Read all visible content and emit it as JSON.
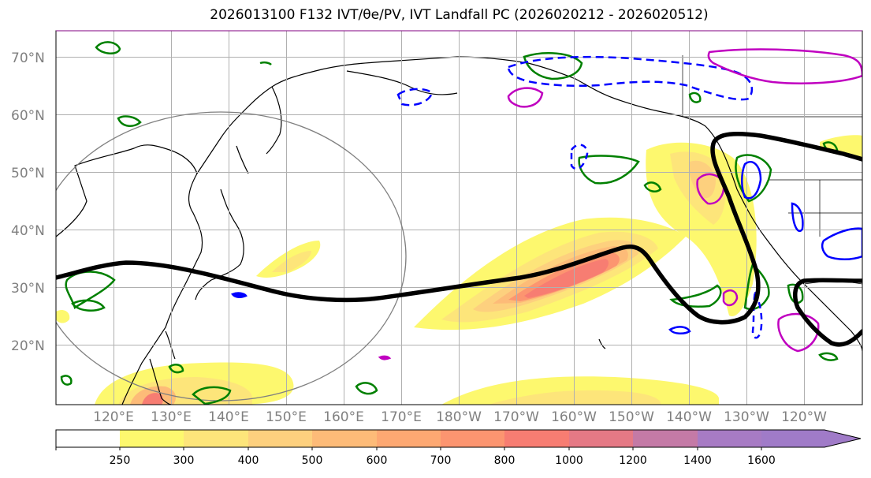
{
  "title": "2026013100 F132 IVT/θe/PV, IVT Landfall PC (2026020212 - 2026020512)",
  "map": {
    "lat_labels": [
      "70°N",
      "60°N",
      "50°N",
      "40°N",
      "30°N",
      "20°N"
    ],
    "lon_labels": [
      "120°E",
      "130°E",
      "140°E",
      "150°E",
      "160°E",
      "170°E",
      "180°W",
      "170°W",
      "160°W",
      "150°W",
      "140°W",
      "130°W",
      "120°W"
    ],
    "extent": {
      "lat_min": 10,
      "lat_max": 75,
      "lon_min": 110,
      "lon_max": 250
    }
  },
  "colorbar": {
    "levels": [
      "250",
      "300",
      "400",
      "500",
      "600",
      "700",
      "800",
      "1000",
      "1200",
      "1400",
      "1600"
    ],
    "colors": [
      "#ffffff",
      "#fdf86e",
      "#fde57a",
      "#fdd07e",
      "#fdbb78",
      "#fda872",
      "#fc9570",
      "#f77d72",
      "#e57985",
      "#c47aa6",
      "#a77bc4",
      "#a07bc8"
    ]
  },
  "legend_colors": {
    "ivt_fill": "#fde57a",
    "pv_contour": "#008000",
    "theta_cold": "#0000ff",
    "theta_warm": "#c000c0",
    "jet_axis": "#000000"
  }
}
